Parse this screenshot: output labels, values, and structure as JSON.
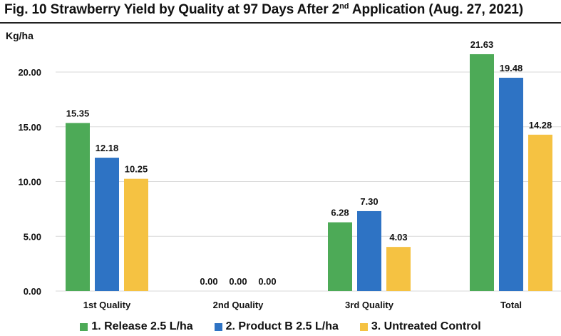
{
  "title": {
    "main": "Fig. 10  Strawberry Yield by Quality at 97 Days After 2",
    "sup": "nd",
    "tail": " Application (Aug. 27, 2021)"
  },
  "chart_data": {
    "type": "bar",
    "ylabel": "Kg/ha",
    "xlabel": "",
    "ylim": [
      0,
      23.5
    ],
    "yticks": [
      0,
      5,
      10,
      15,
      20
    ],
    "ytick_labels": [
      "0.00",
      "5.00",
      "10.00",
      "15.00",
      "20.00"
    ],
    "grid": true,
    "legend_position": "bottom",
    "categories": [
      "1st Quality",
      "2nd Quality",
      "3rd Quality",
      "Total"
    ],
    "series": [
      {
        "name": "1. Release 2.5 L/ha",
        "color": "#4daa57",
        "values": [
          15.35,
          0.0,
          6.28,
          21.63
        ],
        "labels": [
          "15.35",
          "0.00",
          "6.28",
          "21.63"
        ]
      },
      {
        "name": "2. Product B 2.5 L/ha",
        "color": "#2e73c4",
        "values": [
          12.18,
          0.0,
          7.3,
          19.48
        ],
        "labels": [
          "12.18",
          "0.00",
          "7.30",
          "19.48"
        ]
      },
      {
        "name": "3. Untreated Control",
        "color": "#f5c242",
        "values": [
          10.25,
          0.0,
          4.03,
          14.28
        ],
        "labels": [
          "10.25",
          "0.00",
          "4.03",
          "14.28"
        ]
      }
    ]
  }
}
